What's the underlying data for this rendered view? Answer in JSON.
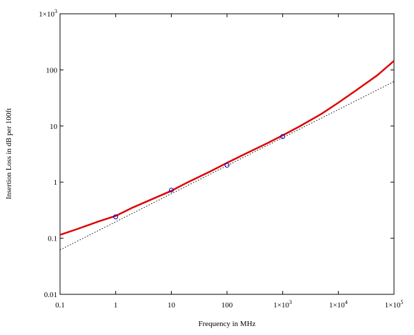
{
  "chart_data": {
    "type": "line",
    "xlabel": "Frequency in MHz",
    "ylabel": "Insertion Loss in dB per 100ft",
    "xscale": "log",
    "yscale": "log",
    "xlim": [
      0.1,
      100000
    ],
    "ylim": [
      0.01,
      1000
    ],
    "grid": false,
    "legend": "none",
    "x_tick_values": [
      0.1,
      1,
      10,
      100,
      1000,
      10000,
      100000
    ],
    "x_tick_labels": [
      {
        "text": "0.1"
      },
      {
        "text": "1"
      },
      {
        "text": "10"
      },
      {
        "text": "100"
      },
      {
        "mant": "1×10",
        "exp": "3"
      },
      {
        "mant": "1×10",
        "exp": "4"
      },
      {
        "mant": "1×10",
        "exp": "5"
      }
    ],
    "y_tick_values": [
      0.01,
      0.1,
      1,
      10,
      100,
      1000
    ],
    "y_tick_labels": [
      {
        "text": "0.01"
      },
      {
        "text": "0.1"
      },
      {
        "text": "1"
      },
      {
        "text": "10"
      },
      {
        "text": "100"
      },
      {
        "mant": "1×10",
        "exp": "3"
      }
    ],
    "series": [
      {
        "style": "solid",
        "color": "#e00000",
        "x": [
          0.1,
          0.2,
          0.5,
          1,
          2,
          5,
          10,
          20,
          50,
          100,
          200,
          500,
          1000,
          2000,
          5000,
          10000,
          20000,
          50000,
          100000
        ],
        "y": [
          0.115,
          0.145,
          0.2,
          0.25,
          0.35,
          0.52,
          0.7,
          1.0,
          1.55,
          2.2,
          3.1,
          4.8,
          6.8,
          9.8,
          16.5,
          26,
          42,
          80,
          145
        ]
      },
      {
        "style": "dotted",
        "color": "#000000",
        "x": [
          0.1,
          100000
        ],
        "y": [
          0.062,
          62
        ]
      },
      {
        "style": "markers",
        "color": "#0000cc",
        "x": [
          1,
          10,
          100,
          1000
        ],
        "y": [
          0.24,
          0.72,
          2.0,
          6.5
        ]
      }
    ]
  }
}
